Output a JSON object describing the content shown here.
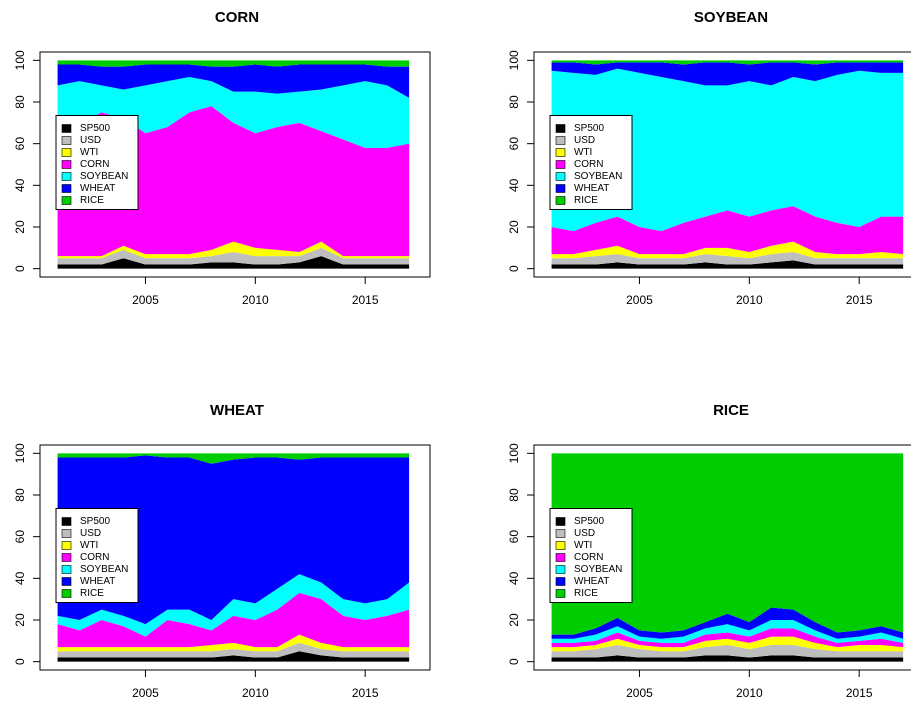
{
  "chart_data": [
    {
      "type": "area",
      "stacked": true,
      "title": "CORN",
      "legend": "left",
      "x": [
        2001,
        2002,
        2003,
        2004,
        2005,
        2006,
        2007,
        2008,
        2009,
        2010,
        2011,
        2012,
        2013,
        2014,
        2015,
        2016,
        2017
      ],
      "xlim": [
        2000.2,
        2017.95
      ],
      "ylim": [
        -4,
        104
      ],
      "xticks": [
        2005,
        2010,
        2015
      ],
      "yticks": [
        0,
        20,
        40,
        60,
        80,
        100
      ],
      "series": [
        {
          "name": "SP500",
          "color": "#000000",
          "values": [
            2,
            2,
            2,
            5,
            2,
            2,
            2,
            3,
            3,
            2,
            2,
            3,
            6,
            2,
            2,
            2,
            2
          ]
        },
        {
          "name": "USD",
          "color": "#bebebe",
          "values": [
            3,
            3,
            3,
            4,
            3,
            3,
            3,
            3,
            5,
            4,
            4,
            3,
            4,
            3,
            3,
            3,
            3
          ]
        },
        {
          "name": "WTI",
          "color": "#ffff00",
          "values": [
            1,
            1,
            1,
            2,
            2,
            2,
            2,
            3,
            5,
            4,
            3,
            2,
            3,
            1,
            1,
            1,
            1
          ]
        },
        {
          "name": "CORN",
          "color": "#ff00ff",
          "values": [
            56,
            64,
            69,
            61,
            58,
            61,
            68,
            69,
            57,
            55,
            59,
            62,
            53,
            56,
            52,
            52,
            54
          ]
        },
        {
          "name": "SOYBEAN",
          "color": "#00ffff",
          "values": [
            26,
            20,
            13,
            14,
            23,
            22,
            17,
            12,
            15,
            20,
            16,
            15,
            20,
            26,
            32,
            30,
            22
          ]
        },
        {
          "name": "WHEAT",
          "color": "#0000ff",
          "values": [
            10,
            8,
            9,
            11,
            10,
            8,
            6,
            7,
            12,
            13,
            13,
            13,
            12,
            10,
            8,
            9,
            15
          ]
        },
        {
          "name": "RICE",
          "color": "#00cd00",
          "values": [
            2,
            2,
            3,
            3,
            2,
            2,
            2,
            3,
            3,
            2,
            3,
            2,
            2,
            2,
            2,
            3,
            3
          ]
        }
      ]
    },
    {
      "type": "area",
      "stacked": true,
      "title": "SOYBEAN",
      "legend": "left",
      "x": [
        2001,
        2002,
        2003,
        2004,
        2005,
        2006,
        2007,
        2008,
        2009,
        2010,
        2011,
        2012,
        2013,
        2014,
        2015,
        2016,
        2017
      ],
      "xlim": [
        2000.2,
        2017.95
      ],
      "ylim": [
        -4,
        104
      ],
      "xticks": [
        2005,
        2010,
        2015
      ],
      "yticks": [
        0,
        20,
        40,
        60,
        80,
        100
      ],
      "series": [
        {
          "name": "SP500",
          "color": "#000000",
          "values": [
            2,
            2,
            2,
            3,
            2,
            2,
            2,
            3,
            2,
            2,
            3,
            4,
            2,
            2,
            2,
            2,
            2
          ]
        },
        {
          "name": "USD",
          "color": "#bebebe",
          "values": [
            3,
            3,
            4,
            4,
            3,
            3,
            3,
            4,
            4,
            3,
            4,
            4,
            3,
            3,
            3,
            3,
            3
          ]
        },
        {
          "name": "WTI",
          "color": "#ffff00",
          "values": [
            2,
            2,
            3,
            4,
            2,
            2,
            2,
            3,
            4,
            3,
            4,
            5,
            3,
            2,
            2,
            3,
            2
          ]
        },
        {
          "name": "CORN",
          "color": "#ff00ff",
          "values": [
            13,
            11,
            13,
            14,
            13,
            11,
            15,
            15,
            18,
            17,
            17,
            17,
            17,
            15,
            13,
            17,
            18
          ]
        },
        {
          "name": "SOYBEAN",
          "color": "#00ffff",
          "values": [
            75,
            76,
            71,
            71,
            74,
            74,
            68,
            63,
            60,
            65,
            60,
            62,
            65,
            71,
            75,
            69,
            69
          ]
        },
        {
          "name": "WHEAT",
          "color": "#0000ff",
          "values": [
            4,
            5,
            5,
            3,
            5,
            7,
            8,
            11,
            11,
            8,
            11,
            7,
            8,
            6,
            4,
            5,
            5
          ]
        },
        {
          "name": "RICE",
          "color": "#00cd00",
          "values": [
            1,
            1,
            2,
            1,
            1,
            1,
            2,
            1,
            1,
            2,
            1,
            1,
            2,
            1,
            1,
            1,
            1
          ]
        }
      ]
    },
    {
      "type": "area",
      "stacked": true,
      "title": "WHEAT",
      "legend": "left",
      "x": [
        2001,
        2002,
        2003,
        2004,
        2005,
        2006,
        2007,
        2008,
        2009,
        2010,
        2011,
        2012,
        2013,
        2014,
        2015,
        2016,
        2017
      ],
      "xlim": [
        2000.2,
        2017.95
      ],
      "ylim": [
        -4,
        104
      ],
      "xticks": [
        2005,
        2010,
        2015
      ],
      "yticks": [
        0,
        20,
        40,
        60,
        80,
        100
      ],
      "series": [
        {
          "name": "SP500",
          "color": "#000000",
          "values": [
            2,
            2,
            2,
            2,
            2,
            2,
            2,
            2,
            3,
            2,
            2,
            5,
            3,
            2,
            2,
            2,
            2
          ]
        },
        {
          "name": "USD",
          "color": "#bebebe",
          "values": [
            3,
            3,
            3,
            3,
            3,
            3,
            3,
            3,
            3,
            3,
            3,
            4,
            3,
            3,
            3,
            3,
            3
          ]
        },
        {
          "name": "WTI",
          "color": "#ffff00",
          "values": [
            2,
            2,
            2,
            2,
            2,
            2,
            2,
            3,
            3,
            2,
            2,
            4,
            3,
            2,
            2,
            2,
            2
          ]
        },
        {
          "name": "CORN",
          "color": "#ff00ff",
          "values": [
            11,
            8,
            13,
            10,
            5,
            13,
            11,
            7,
            13,
            13,
            18,
            20,
            21,
            15,
            13,
            15,
            18
          ]
        },
        {
          "name": "SOYBEAN",
          "color": "#00ffff",
          "values": [
            4,
            5,
            5,
            5,
            6,
            5,
            7,
            5,
            8,
            8,
            10,
            9,
            8,
            8,
            8,
            8,
            13
          ]
        },
        {
          "name": "WHEAT",
          "color": "#0000ff",
          "values": [
            76,
            78,
            73,
            76,
            81,
            73,
            73,
            75,
            67,
            70,
            63,
            55,
            60,
            68,
            70,
            68,
            60
          ]
        },
        {
          "name": "RICE",
          "color": "#00cd00",
          "values": [
            2,
            2,
            2,
            2,
            1,
            2,
            2,
            5,
            3,
            2,
            2,
            3,
            2,
            2,
            2,
            2,
            2
          ]
        }
      ]
    },
    {
      "type": "area",
      "stacked": true,
      "title": "RICE",
      "legend": "left",
      "x": [
        2001,
        2002,
        2003,
        2004,
        2005,
        2006,
        2007,
        2008,
        2009,
        2010,
        2011,
        2012,
        2013,
        2014,
        2015,
        2016,
        2017
      ],
      "xlim": [
        2000.2,
        2017.95
      ],
      "ylim": [
        -4,
        104
      ],
      "xticks": [
        2005,
        2010,
        2015
      ],
      "yticks": [
        0,
        20,
        40,
        60,
        80,
        100
      ],
      "series": [
        {
          "name": "SP500",
          "color": "#000000",
          "values": [
            2,
            2,
            2,
            3,
            2,
            2,
            2,
            3,
            3,
            2,
            3,
            3,
            2,
            2,
            2,
            2,
            2
          ]
        },
        {
          "name": "USD",
          "color": "#bebebe",
          "values": [
            3,
            3,
            4,
            5,
            4,
            3,
            3,
            4,
            5,
            4,
            5,
            5,
            4,
            3,
            3,
            3,
            3
          ]
        },
        {
          "name": "WTI",
          "color": "#ffff00",
          "values": [
            2,
            2,
            2,
            3,
            2,
            2,
            2,
            3,
            3,
            3,
            4,
            4,
            3,
            2,
            3,
            3,
            2
          ]
        },
        {
          "name": "CORN",
          "color": "#ff00ff",
          "values": [
            2,
            2,
            2,
            3,
            2,
            2,
            2,
            3,
            3,
            3,
            4,
            4,
            3,
            2,
            2,
            3,
            2
          ]
        },
        {
          "name": "SOYBEAN",
          "color": "#00ffff",
          "values": [
            2,
            2,
            3,
            3,
            2,
            2,
            3,
            3,
            4,
            3,
            4,
            4,
            3,
            2,
            2,
            3,
            2
          ]
        },
        {
          "name": "WHEAT",
          "color": "#0000ff",
          "values": [
            2,
            2,
            3,
            4,
            3,
            3,
            3,
            3,
            5,
            4,
            6,
            5,
            4,
            3,
            3,
            3,
            3
          ]
        },
        {
          "name": "RICE",
          "color": "#00cd00",
          "values": [
            87,
            87,
            84,
            79,
            85,
            86,
            85,
            81,
            77,
            81,
            74,
            75,
            81,
            86,
            85,
            83,
            86
          ]
        }
      ]
    }
  ]
}
